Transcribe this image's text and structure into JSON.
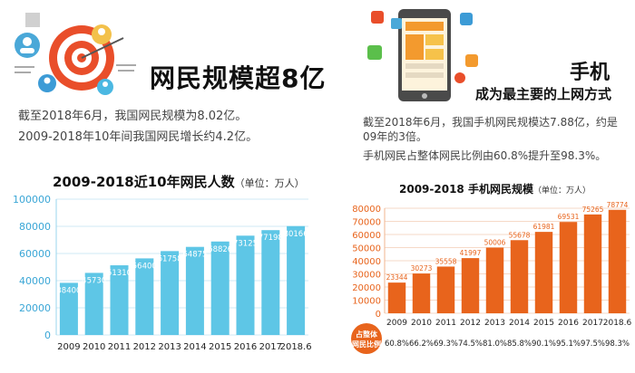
{
  "left": {
    "title": "网民规模超8亿",
    "paragraphs": [
      "截至2018年6月，我国网民规模为8.02亿。",
      "2009-2018年10年间我国网民增长约4.2亿。"
    ]
  },
  "right": {
    "title": "手机",
    "subtitle": "成为最主要的上网方式",
    "paragraphs": [
      "截至2018年6月，我国手机网民规模达7.88亿，约是",
      "09年的3倍。",
      "手机网民占整体网民比例由60.8%提升至98.3%。"
    ]
  },
  "colors": {
    "left_bar": "#5ec6e6",
    "right_bar": "#e8641c",
    "axis_text_left": "#3aa6d6",
    "axis_text_right": "#e8641c",
    "badge": "#e8641c"
  },
  "icons": [
    "target-icon",
    "smartphone-icon"
  ],
  "chart_data": [
    {
      "type": "bar",
      "title": "2009-2018近10年网民人数",
      "unit_note": "（单位：万人）",
      "categories": [
        "2009",
        "2010",
        "2011",
        "2012",
        "2013",
        "2014",
        "2015",
        "2016",
        "2017",
        "2018.6"
      ],
      "values": [
        38400,
        45730,
        51310,
        56400,
        61758,
        64875,
        68826,
        73125,
        77198,
        80166
      ],
      "yticks": [
        "0",
        "20000",
        "40000",
        "60000",
        "80000",
        "100000"
      ],
      "ylim": [
        0,
        100000
      ],
      "grid": true
    },
    {
      "type": "bar",
      "title": "2009-2018 手机网民规模",
      "unit_note": "（单位：万人）",
      "categories": [
        "2009",
        "2010",
        "2011",
        "2012",
        "2013",
        "2014",
        "2015",
        "2016",
        "2017",
        "2018.6"
      ],
      "values": [
        23344,
        30273,
        35558,
        41997,
        50006,
        55678,
        61981,
        69531,
        75265,
        78774
      ],
      "yticks": [
        "0",
        "10000",
        "20000",
        "30000",
        "40000",
        "50000",
        "60000",
        "70000",
        "80000"
      ],
      "ylim": [
        0,
        80000
      ],
      "grid": true,
      "ratio_label": "占整体网民比例",
      "ratios": [
        "60.8%",
        "66.2%",
        "69.3%",
        "74.5%",
        "81.0%",
        "85.8%",
        "90.1%",
        "95.1%",
        "97.5%",
        "98.3%"
      ]
    }
  ]
}
